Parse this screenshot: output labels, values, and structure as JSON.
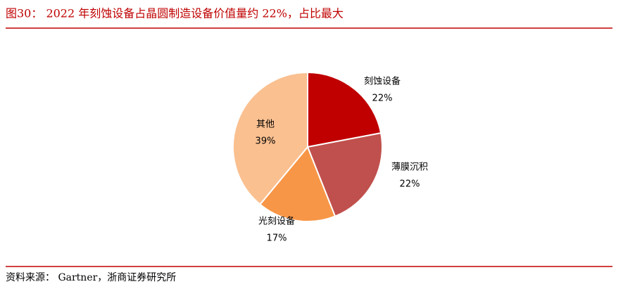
{
  "chart_data": {
    "type": "pie",
    "title": "图30： 2022 年刻蚀设备占晶圆制造设备价值量约 22%，占比最大",
    "source": "资料来源： Gartner，浙商证券研究所",
    "categories": [
      "刻蚀设备",
      "薄膜沉积",
      "光刻设备",
      "其他"
    ],
    "values": [
      22,
      22,
      17,
      39
    ],
    "value_labels": [
      "22%",
      "22%",
      "17%",
      "39%"
    ],
    "colors": [
      "#c00000",
      "#c0504d",
      "#f79646",
      "#fac090"
    ]
  }
}
